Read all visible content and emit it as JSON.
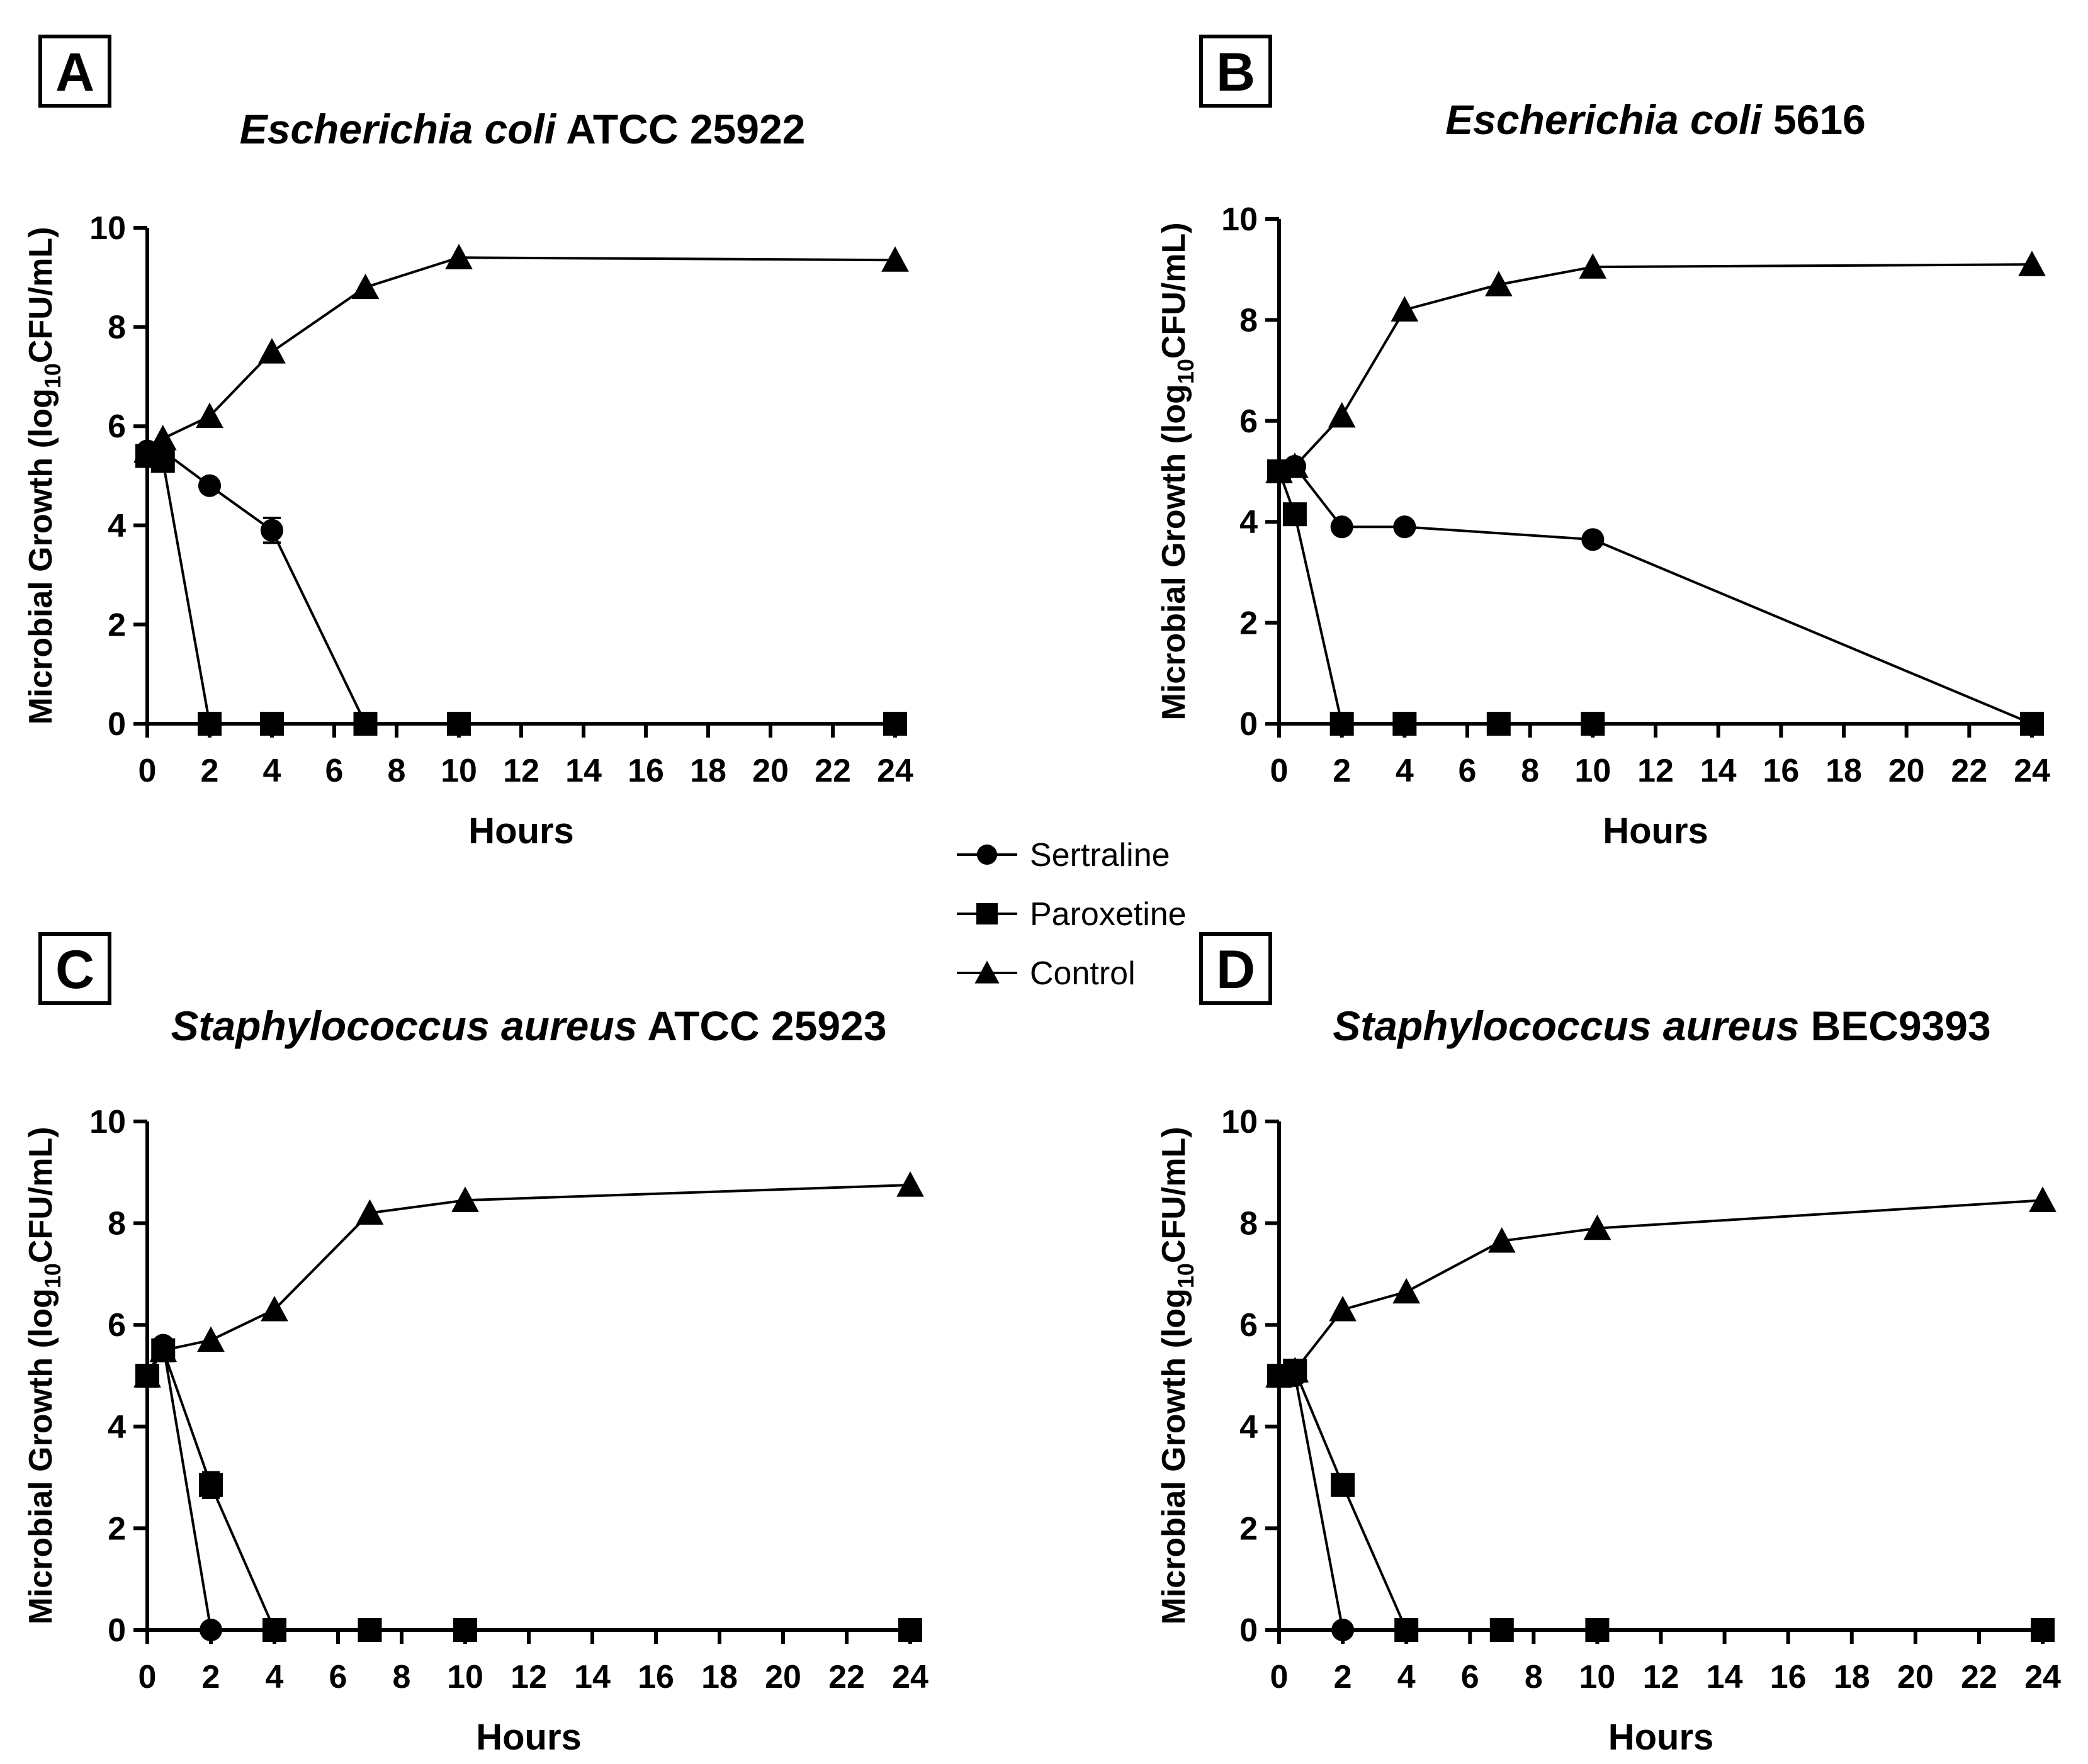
{
  "legend": [
    {
      "name": "Sertraline",
      "marker": "circle"
    },
    {
      "name": "Paroxetine",
      "marker": "square"
    },
    {
      "name": "Control",
      "marker": "triangle"
    }
  ],
  "colors": {
    "ink": "#000000",
    "background": "#ffffff"
  },
  "chart_data": [
    {
      "type": "line",
      "panel": "A",
      "title_italic": "Escherichia coli",
      "title_rest": " ATCC 25922",
      "xlabel": "Hours",
      "ylabel_prefix": "Microbial Growth (log",
      "ylabel_sub": "10",
      "ylabel_suffix": "CFU/mL)",
      "xlim": [
        0,
        24
      ],
      "ylim": [
        0,
        10
      ],
      "xticks": [
        0,
        2,
        4,
        6,
        8,
        10,
        12,
        14,
        16,
        18,
        20,
        22,
        24
      ],
      "yticks": [
        0,
        2,
        4,
        6,
        8,
        10
      ],
      "series": [
        {
          "name": "Sertraline",
          "marker": "circle",
          "x": [
            0,
            0.5,
            2,
            4,
            7
          ],
          "y": [
            5.5,
            5.5,
            4.8,
            3.9,
            0
          ],
          "err": [
            0,
            0,
            0.1,
            0.25,
            0
          ]
        },
        {
          "name": "Paroxetine",
          "marker": "square",
          "x": [
            0,
            0.5,
            2,
            4,
            7,
            10,
            24
          ],
          "y": [
            5.4,
            5.3,
            0,
            0,
            0,
            0,
            0
          ],
          "err": [
            0,
            0,
            0,
            0,
            0,
            0,
            0
          ]
        },
        {
          "name": "Control",
          "marker": "triangle",
          "x": [
            0,
            0.5,
            2,
            4,
            7,
            10,
            24
          ],
          "y": [
            5.5,
            5.75,
            6.2,
            7.5,
            8.8,
            9.4,
            9.35
          ],
          "err": [
            0,
            0,
            0,
            0,
            0,
            0,
            0
          ]
        }
      ]
    },
    {
      "type": "line",
      "panel": "B",
      "title_italic": "Escherichia coli",
      "title_rest": " 5616",
      "xlabel": "Hours",
      "ylabel_prefix": "Microbial Growth (log",
      "ylabel_sub": "10",
      "ylabel_suffix": "CFU/mL)",
      "xlim": [
        0,
        24
      ],
      "ylim": [
        0,
        10
      ],
      "xticks": [
        0,
        2,
        4,
        6,
        8,
        10,
        12,
        14,
        16,
        18,
        20,
        22,
        24
      ],
      "yticks": [
        0,
        2,
        4,
        6,
        8,
        10
      ],
      "series": [
        {
          "name": "Sertraline",
          "marker": "circle",
          "x": [
            0,
            0.5,
            2,
            4,
            10,
            24
          ],
          "y": [
            5.0,
            5.1,
            3.9,
            3.9,
            3.65,
            0
          ],
          "err": [
            0,
            0,
            0,
            0,
            0,
            0
          ]
        },
        {
          "name": "Paroxetine",
          "marker": "square",
          "x": [
            0,
            0.5,
            2,
            4,
            7,
            10,
            24
          ],
          "y": [
            5.0,
            4.15,
            0,
            0,
            0,
            0,
            0
          ],
          "err": [
            0,
            0,
            0,
            0,
            0,
            0,
            0
          ]
        },
        {
          "name": "Control",
          "marker": "triangle",
          "x": [
            0,
            0.5,
            2,
            4,
            7,
            10,
            24
          ],
          "y": [
            5.0,
            5.1,
            6.1,
            8.2,
            8.7,
            9.05,
            9.1
          ],
          "err": [
            0,
            0,
            0,
            0,
            0,
            0,
            0
          ]
        }
      ]
    },
    {
      "type": "line",
      "panel": "C",
      "title_italic": "Staphylococcus aureus",
      "title_rest": " ATCC 25923",
      "xlabel": "Hours",
      "ylabel_prefix": "Microbial Growth (log",
      "ylabel_sub": "10",
      "ylabel_suffix": "CFU/mL)",
      "xlim": [
        0,
        24
      ],
      "ylim": [
        0,
        10
      ],
      "xticks": [
        0,
        2,
        4,
        6,
        8,
        10,
        12,
        14,
        16,
        18,
        20,
        22,
        24
      ],
      "yticks": [
        0,
        2,
        4,
        6,
        8,
        10
      ],
      "series": [
        {
          "name": "Sertraline",
          "marker": "circle",
          "x": [
            0,
            0.5,
            2
          ],
          "y": [
            5.0,
            5.6,
            0
          ],
          "err": [
            0,
            0,
            0
          ]
        },
        {
          "name": "Paroxetine",
          "marker": "square",
          "x": [
            0,
            0.5,
            2,
            4,
            7,
            10,
            24
          ],
          "y": [
            5.0,
            5.5,
            2.85,
            0,
            0,
            0,
            0
          ],
          "err": [
            0,
            0,
            0.25,
            0,
            0,
            0,
            0
          ]
        },
        {
          "name": "Control",
          "marker": "triangle",
          "x": [
            0,
            0.5,
            2,
            4,
            7,
            10,
            24
          ],
          "y": [
            5.0,
            5.5,
            5.7,
            6.3,
            8.2,
            8.45,
            8.75
          ],
          "err": [
            0,
            0,
            0,
            0,
            0,
            0,
            0
          ]
        }
      ]
    },
    {
      "type": "line",
      "panel": "D",
      "title_italic": "Staphylococcus aureus",
      "title_rest": " BEC9393",
      "xlabel": "Hours",
      "ylabel_prefix": "Microbial Growth (log",
      "ylabel_sub": "10",
      "ylabel_suffix": "CFU/mL)",
      "xlim": [
        0,
        24
      ],
      "ylim": [
        0,
        10
      ],
      "xticks": [
        0,
        2,
        4,
        6,
        8,
        10,
        12,
        14,
        16,
        18,
        20,
        22,
        24
      ],
      "yticks": [
        0,
        2,
        4,
        6,
        8,
        10
      ],
      "series": [
        {
          "name": "Sertraline",
          "marker": "circle",
          "x": [
            0,
            0.5,
            2
          ],
          "y": [
            5.0,
            5.0,
            0
          ],
          "err": [
            0,
            0,
            0
          ]
        },
        {
          "name": "Paroxetine",
          "marker": "square",
          "x": [
            0,
            0.5,
            2,
            4,
            7,
            10,
            24
          ],
          "y": [
            5.0,
            5.1,
            2.85,
            0,
            0,
            0,
            0
          ],
          "err": [
            0,
            0,
            0,
            0,
            0,
            0,
            0
          ]
        },
        {
          "name": "Control",
          "marker": "triangle",
          "x": [
            0,
            0.5,
            2,
            4,
            7,
            10,
            24
          ],
          "y": [
            5.0,
            5.1,
            6.3,
            6.65,
            7.65,
            7.9,
            8.45
          ],
          "err": [
            0,
            0,
            0,
            0,
            0,
            0,
            0
          ]
        }
      ]
    }
  ]
}
